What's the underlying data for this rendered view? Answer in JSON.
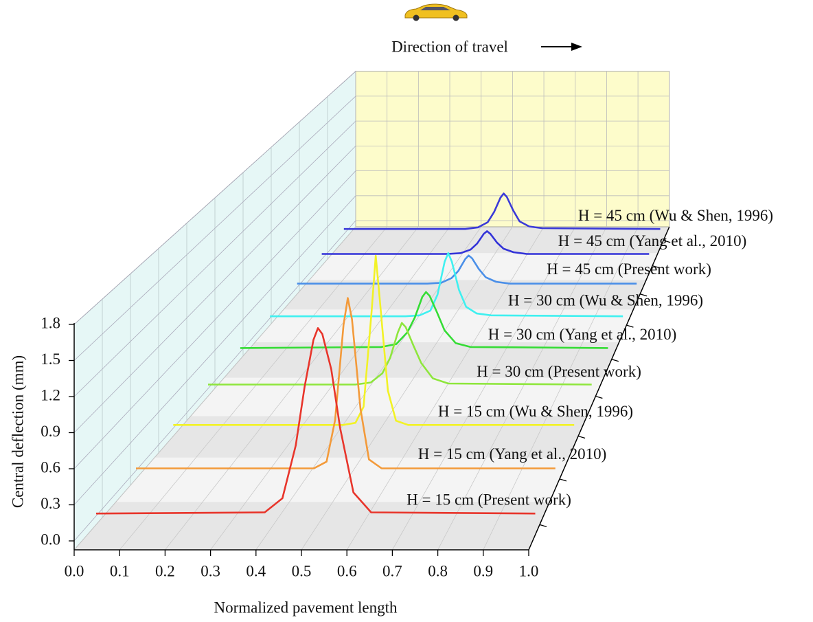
{
  "chart_data": {
    "type": "waterfall3d",
    "xlabel": "Normalized pavement length",
    "ylabel": "Central deflection (mm)",
    "annotation": "Direction of travel",
    "xlim": [
      0,
      1
    ],
    "ylim": [
      0,
      1.8
    ],
    "xticks": [
      {
        "value": 0,
        "label": "0.0"
      },
      0.1,
      0.2,
      0.3,
      0.4,
      0.5,
      0.6,
      0.7,
      0.8,
      0.9,
      {
        "value": 1,
        "label": "1.0"
      }
    ],
    "yticks": [
      {
        "value": 0,
        "label": "0.0"
      },
      0.3,
      0.6,
      0.9,
      1.2,
      1.5,
      1.8
    ],
    "grid": true,
    "x": [
      0,
      0.38,
      0.42,
      0.45,
      0.47,
      0.49,
      0.5,
      0.51,
      0.53,
      0.55,
      0.58,
      0.62,
      0.99
    ],
    "series": [
      {
        "name": "H = 15 cm (Present work)",
        "color": "#e8352b",
        "values": [
          0.02,
          0.03,
          0.15,
          0.6,
          1.1,
          1.5,
          1.6,
          1.55,
          1.25,
          0.75,
          0.2,
          0.03,
          0.02
        ]
      },
      {
        "name": "H = 15 cm (Yang et al., 2010)",
        "color": "#f39a3a",
        "values": [
          0.02,
          0.02,
          0.02,
          0.08,
          0.45,
          1.3,
          1.54,
          1.35,
          0.55,
          0.1,
          0.02,
          0.02,
          0.02
        ]
      },
      {
        "name": "H = 15 cm (Wu & Shen, 1996)",
        "color": "#f2f226",
        "values": [
          0.03,
          0.03,
          0.03,
          0.05,
          0.2,
          1.1,
          1.61,
          1.2,
          0.35,
          0.07,
          0.03,
          0.03,
          0.03
        ]
      },
      {
        "name": "H = 30 cm (Present work)",
        "color": "#8ee63c",
        "values": [
          0.04,
          0.04,
          0.06,
          0.15,
          0.3,
          0.55,
          0.64,
          0.6,
          0.42,
          0.25,
          0.1,
          0.05,
          0.04
        ]
      },
      {
        "name": "H = 30 cm (Yang et al., 2010)",
        "color": "#35dc35",
        "values": [
          0.04,
          0.05,
          0.08,
          0.2,
          0.35,
          0.56,
          0.61,
          0.57,
          0.4,
          0.22,
          0.09,
          0.05,
          0.04
        ]
      },
      {
        "name": "H = 30 cm (Wu & Shen, 1996)",
        "color": "#3ff0f0",
        "values": [
          0.02,
          0.02,
          0.03,
          0.08,
          0.25,
          0.6,
          0.69,
          0.6,
          0.3,
          0.12,
          0.05,
          0.03,
          0.02
        ]
      },
      {
        "name": "H = 45 cm (Present work)",
        "color": "#4a8fe8",
        "values": [
          0.04,
          0.04,
          0.05,
          0.1,
          0.18,
          0.31,
          0.35,
          0.32,
          0.2,
          0.11,
          0.06,
          0.04,
          0.04
        ]
      },
      {
        "name": "H = 45 cm (Yang et al., 2010)",
        "color": "#3333d8",
        "values": [
          0.06,
          0.06,
          0.07,
          0.11,
          0.18,
          0.29,
          0.32,
          0.29,
          0.19,
          0.12,
          0.08,
          0.06,
          0.06
        ]
      },
      {
        "name": "H = 45 cm (Wu & Shen, 1996)",
        "color": "#3a3ad8",
        "values": [
          0.06,
          0.06,
          0.08,
          0.14,
          0.26,
          0.43,
          0.48,
          0.44,
          0.28,
          0.15,
          0.09,
          0.07,
          0.06
        ]
      }
    ]
  }
}
